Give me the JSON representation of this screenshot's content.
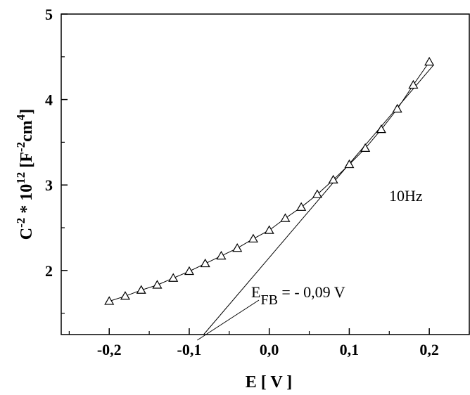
{
  "chart_data": {
    "type": "scatter",
    "xlabel": "E [ V ]",
    "ylabel": {
      "base": "C",
      "exp1": "-2",
      "mid": " * 10",
      "exp2": "12",
      "unit_open": " [F",
      "exp3": "-2",
      "unit_mid": "cm",
      "exp4": "4",
      "unit_close": "]"
    },
    "xlim": [
      -0.26,
      0.25
    ],
    "ylim": [
      1.25,
      5.0
    ],
    "x_ticks": [
      -0.2,
      -0.1,
      0.0,
      0.1,
      0.2
    ],
    "x_tick_labels": [
      "-0,2",
      "-0,1",
      "0,0",
      "0,1",
      "0,2"
    ],
    "y_ticks": [
      2,
      3,
      4,
      5
    ],
    "y_tick_labels": [
      "2",
      "3",
      "4",
      "5"
    ],
    "grid": false,
    "series": [
      {
        "marker": "triangle",
        "x": [
          -0.2,
          -0.18,
          -0.16,
          -0.14,
          -0.12,
          -0.1,
          -0.08,
          -0.06,
          -0.04,
          -0.02,
          0.0,
          0.02,
          0.04,
          0.06,
          0.08,
          0.1,
          0.12,
          0.14,
          0.16,
          0.18,
          0.2
        ],
        "y": [
          1.64,
          1.7,
          1.77,
          1.83,
          1.91,
          1.99,
          2.08,
          2.17,
          2.26,
          2.37,
          2.47,
          2.61,
          2.74,
          2.89,
          3.06,
          3.24,
          3.43,
          3.65,
          3.89,
          4.17,
          4.44
        ]
      }
    ],
    "fit_line": {
      "x": [
        -0.082,
        0.205
      ],
      "y": [
        1.25,
        4.4
      ]
    },
    "annotations": {
      "frequency": "10Hz",
      "efb_main": "E",
      "efb_sub": "FB",
      "efb_value": " = - 0,09 V",
      "pointer_target": {
        "x": -0.09,
        "y": 1.25
      }
    }
  }
}
